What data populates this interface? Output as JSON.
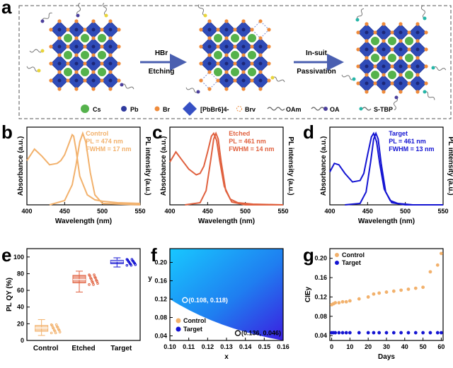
{
  "panel_labels": {
    "a": "a",
    "b": "b",
    "c": "c",
    "d": "d",
    "e": "e",
    "f": "f",
    "g": "g"
  },
  "schematic": {
    "step1_top": "HBr",
    "step1_bottom": "Etching",
    "step2_top": "In-suit",
    "step2_bottom": "Passivation",
    "legend": {
      "cs": "Cs",
      "pb": "Pb",
      "br": "Br",
      "pbbr6": "[PbBr6]4-",
      "brv": "Brv",
      "oam": "OAm",
      "oa": "OA",
      "stbp": "S-TBP"
    }
  },
  "colors": {
    "control": "#f2b16c",
    "etched": "#e0613f",
    "target": "#1414d2",
    "crystal": "#2f4bb8",
    "cs": "#55b24c",
    "br": "#ef8b3b"
  },
  "chart_data": [
    {
      "id": "b",
      "type": "line",
      "title": "",
      "xlabel": "Wavelength (nm)",
      "ylabel_left": "Absorbance (a.u.)",
      "ylabel_right": "PL intensity (a.u.)",
      "xlim": [
        400,
        550
      ],
      "xticks": [
        400,
        450,
        500,
        550
      ],
      "annotation": [
        "Control",
        "PL = 474 nm",
        "FWHM = 17 nm"
      ],
      "series": [
        {
          "kind": "absorbance",
          "x": [
            400,
            410,
            420,
            430,
            440,
            445,
            450,
            455,
            460,
            462,
            465,
            470,
            480,
            490,
            500,
            520,
            550
          ],
          "y": [
            0.62,
            0.78,
            0.68,
            0.56,
            0.58,
            0.62,
            0.7,
            0.84,
            0.98,
            0.96,
            0.78,
            0.4,
            0.14,
            0.07,
            0.05,
            0.03,
            0.02
          ]
        },
        {
          "kind": "pl",
          "x": [
            430,
            450,
            460,
            465,
            470,
            474,
            478,
            484,
            490,
            500,
            550
          ],
          "y": [
            0.0,
            0.06,
            0.28,
            0.55,
            0.88,
            1.0,
            0.88,
            0.45,
            0.14,
            0.02,
            0.0
          ]
        }
      ]
    },
    {
      "id": "c",
      "type": "line",
      "title": "",
      "xlabel": "Wavelength (nm)",
      "ylabel_left": "Absorbance (a.u.)",
      "ylabel_right": "PL intensity (a.u.)",
      "xlim": [
        400,
        550
      ],
      "xticks": [
        400,
        450,
        500,
        550
      ],
      "annotation": [
        "Etched",
        "PL = 461 nm",
        "FWHM = 14 nm"
      ],
      "series": [
        {
          "kind": "absorbance",
          "x": [
            400,
            408,
            415,
            425,
            435,
            440,
            445,
            450,
            455,
            458,
            462,
            466,
            472,
            480,
            490,
            510,
            550
          ],
          "y": [
            0.6,
            0.74,
            0.64,
            0.5,
            0.42,
            0.44,
            0.54,
            0.74,
            0.96,
            1.0,
            0.9,
            0.62,
            0.26,
            0.08,
            0.03,
            0.01,
            0.0
          ]
        },
        {
          "kind": "pl",
          "x": [
            420,
            440,
            448,
            454,
            458,
            461,
            464,
            468,
            474,
            482,
            500,
            550
          ],
          "y": [
            0.0,
            0.03,
            0.2,
            0.62,
            0.92,
            1.0,
            0.92,
            0.6,
            0.2,
            0.04,
            0.0,
            0.0
          ]
        }
      ]
    },
    {
      "id": "d",
      "type": "line",
      "title": "",
      "xlabel": "Wavelength (nm)",
      "ylabel_left": "Absorbance (a.u.)",
      "ylabel_right": "PL intensity (a.u.)",
      "xlim": [
        400,
        550
      ],
      "xticks": [
        400,
        450,
        500,
        550
      ],
      "annotation": [
        "Target",
        "PL = 461 nm",
        "FWHM = 13 nm"
      ],
      "series": [
        {
          "kind": "absorbance",
          "x": [
            400,
            406,
            412,
            420,
            430,
            440,
            445,
            450,
            455,
            458,
            462,
            466,
            472,
            480,
            490,
            510,
            550
          ],
          "y": [
            0.46,
            0.58,
            0.56,
            0.44,
            0.32,
            0.34,
            0.44,
            0.7,
            0.95,
            1.0,
            0.88,
            0.58,
            0.22,
            0.06,
            0.02,
            0.0,
            0.0
          ]
        },
        {
          "kind": "pl",
          "x": [
            420,
            440,
            448,
            454,
            458,
            461,
            464,
            468,
            474,
            482,
            500,
            550
          ],
          "y": [
            0.0,
            0.02,
            0.18,
            0.6,
            0.92,
            1.0,
            0.92,
            0.58,
            0.18,
            0.03,
            0.0,
            0.0
          ]
        }
      ]
    },
    {
      "id": "e",
      "type": "box",
      "title": "",
      "ylabel": "PL QY (%)",
      "ylim": [
        0,
        110
      ],
      "yticks": [
        0,
        20,
        40,
        60,
        80,
        100
      ],
      "categories": [
        "Control",
        "Etched",
        "Target"
      ],
      "boxes": [
        {
          "name": "Control",
          "min": 6,
          "q1": 11,
          "median": 15,
          "mean": 15,
          "q3": 18,
          "max": 25
        },
        {
          "name": "Etched",
          "min": 58,
          "q1": 69,
          "median": 73,
          "mean": 74,
          "q3": 78,
          "max": 83
        },
        {
          "name": "Target",
          "min": 88,
          "q1": 92,
          "median": 95,
          "mean": 94,
          "q3": 96,
          "max": 99
        }
      ]
    },
    {
      "id": "f",
      "type": "scatter",
      "title": "",
      "xlabel": "x",
      "ylabel": "y",
      "xlim": [
        0.1,
        0.16
      ],
      "ylim": [
        0.03,
        0.23
      ],
      "xticks": [
        0.1,
        0.11,
        0.12,
        0.13,
        0.14,
        0.15,
        0.16
      ],
      "yticks": [
        0.04,
        0.08,
        0.12,
        0.16,
        0.2
      ],
      "legend": [
        "Control",
        "Target"
      ],
      "points": [
        {
          "name": "Control",
          "x": 0.108,
          "y": 0.118,
          "label": "(0.108, 0.118)"
        },
        {
          "name": "Target",
          "x": 0.136,
          "y": 0.046,
          "label": "(0.136, 0.046)"
        }
      ]
    },
    {
      "id": "g",
      "type": "scatter",
      "title": "",
      "xlabel": "Days",
      "ylabel": "CIEy",
      "xlim": [
        -1,
        61
      ],
      "ylim": [
        0.03,
        0.22
      ],
      "xticks": [
        0,
        10,
        20,
        30,
        40,
        50,
        60
      ],
      "yticks": [
        0.04,
        0.08,
        0.12,
        0.16,
        0.2
      ],
      "legend": [
        "Control",
        "Target"
      ],
      "series": [
        {
          "name": "Control",
          "x": [
            0,
            1,
            2,
            4,
            6,
            8,
            10,
            15,
            20,
            23,
            26,
            30,
            34,
            38,
            42,
            46,
            50,
            54,
            58,
            60
          ],
          "y": [
            0.104,
            0.106,
            0.108,
            0.108,
            0.11,
            0.11,
            0.112,
            0.116,
            0.12,
            0.126,
            0.128,
            0.13,
            0.132,
            0.134,
            0.136,
            0.138,
            0.14,
            0.172,
            0.186,
            0.21
          ]
        },
        {
          "name": "Target",
          "x": [
            0,
            1,
            2,
            4,
            6,
            8,
            10,
            15,
            20,
            23,
            26,
            30,
            34,
            38,
            42,
            46,
            50,
            54,
            58,
            60
          ],
          "y": [
            0.046,
            0.046,
            0.046,
            0.046,
            0.046,
            0.046,
            0.046,
            0.046,
            0.046,
            0.046,
            0.046,
            0.046,
            0.046,
            0.046,
            0.046,
            0.046,
            0.046,
            0.046,
            0.046,
            0.046
          ]
        }
      ]
    }
  ]
}
